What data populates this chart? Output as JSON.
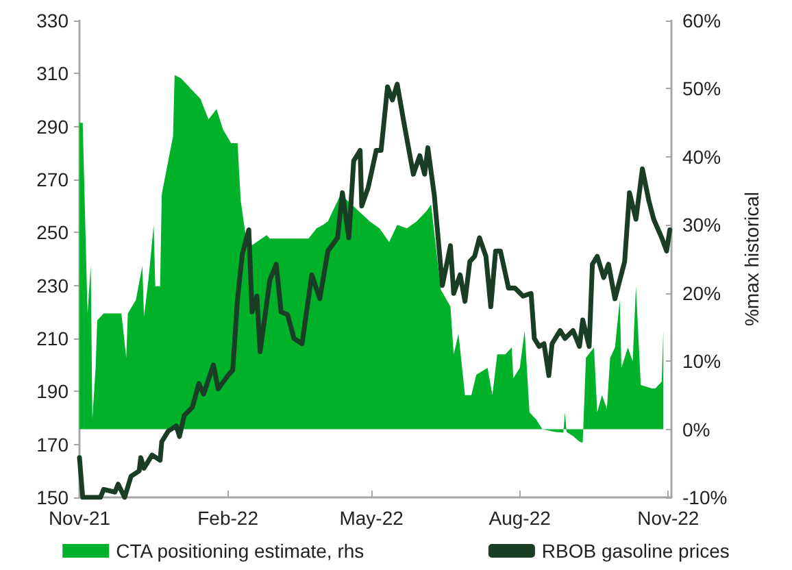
{
  "chart_data": {
    "type": "line",
    "y2label": "%max historical",
    "xlim": [
      "2021-11-01",
      "2022-11-03"
    ],
    "xticks": [
      {
        "value": "2021-11-01",
        "label": "Nov-21"
      },
      {
        "value": "2022-02-01",
        "label": "Feb-22"
      },
      {
        "value": "2022-05-01",
        "label": "May-22"
      },
      {
        "value": "2022-08-01",
        "label": "Aug-22"
      },
      {
        "value": "2022-11-01",
        "label": "Nov-22"
      }
    ],
    "ylim": [
      150,
      330
    ],
    "yticks": [
      150,
      170,
      190,
      210,
      230,
      250,
      270,
      290,
      310,
      330
    ],
    "y2lim": [
      -10,
      60
    ],
    "y2ticks": [
      {
        "value": -10,
        "label": "-10%"
      },
      {
        "value": 0,
        "label": "0%"
      },
      {
        "value": 10,
        "label": "10%"
      },
      {
        "value": 20,
        "label": "20%"
      },
      {
        "value": 30,
        "label": "30%"
      },
      {
        "value": 40,
        "label": "40%"
      },
      {
        "value": 50,
        "label": "50%"
      },
      {
        "value": 60,
        "label": "60%"
      }
    ],
    "grid": false,
    "legend": "bottom",
    "marker": "none",
    "series": [
      {
        "name": "CTA positioning estimate, rhs",
        "type": "area",
        "axis": "y2",
        "color": "#00b22a",
        "x": [
          "2021-11-01",
          "2021-11-03",
          "2021-11-06",
          "2021-11-08",
          "2021-11-09",
          "2021-11-11",
          "2021-11-12",
          "2021-11-16",
          "2021-11-27",
          "2021-11-30",
          "2021-12-01",
          "2021-12-06",
          "2021-12-10",
          "2021-12-11",
          "2021-12-14",
          "2021-12-17",
          "2021-12-18",
          "2021-12-21",
          "2021-12-22",
          "2021-12-29",
          "2021-12-30",
          "2022-01-03",
          "2022-01-09",
          "2022-01-15",
          "2022-01-20",
          "2022-01-25",
          "2022-01-29",
          "2022-02-03",
          "2022-02-07",
          "2022-02-09",
          "2022-02-12",
          "2022-02-16",
          "2022-02-25",
          "2022-02-27",
          "2022-03-10",
          "2022-03-23",
          "2022-03-28",
          "2022-04-01",
          "2022-04-04",
          "2022-04-12",
          "2022-04-21",
          "2022-04-30",
          "2022-05-06",
          "2022-05-12",
          "2022-05-17",
          "2022-05-23",
          "2022-05-29",
          "2022-06-04",
          "2022-06-07",
          "2022-06-13",
          "2022-06-19",
          "2022-06-21",
          "2022-06-24",
          "2022-06-28",
          "2022-07-02",
          "2022-07-05",
          "2022-07-12",
          "2022-07-15",
          "2022-07-18",
          "2022-07-23",
          "2022-07-27",
          "2022-07-28",
          "2022-08-01",
          "2022-08-04",
          "2022-08-07",
          "2022-08-11",
          "2022-08-15",
          "2022-08-19",
          "2022-08-23",
          "2022-08-28",
          "2022-08-29",
          "2022-08-30",
          "2022-09-03",
          "2022-09-07",
          "2022-09-09",
          "2022-09-11",
          "2022-09-16",
          "2022-09-18",
          "2022-09-21",
          "2022-09-24",
          "2022-09-26",
          "2022-09-29",
          "2022-10-02",
          "2022-10-03",
          "2022-10-07",
          "2022-10-10",
          "2022-10-12",
          "2022-10-15",
          "2022-10-22",
          "2022-10-24",
          "2022-10-28",
          "2022-10-29"
        ],
        "values": [
          45,
          45,
          17,
          24,
          1.5,
          9,
          16,
          17,
          17,
          10.5,
          17,
          19,
          24,
          16.5,
          22.5,
          30,
          21,
          21,
          34.5,
          43,
          52,
          51.5,
          50,
          48.5,
          45.5,
          47,
          44,
          42,
          42,
          33.5,
          28.5,
          27,
          28.5,
          28,
          28,
          28,
          29.5,
          30,
          30.5,
          34.5,
          32.5,
          30.5,
          29.5,
          27.5,
          30,
          29.5,
          30.5,
          32,
          33,
          20.5,
          18,
          11,
          14,
          5,
          5,
          8,
          9,
          5,
          11,
          11,
          12,
          7.5,
          9,
          14.5,
          2.5,
          1.5,
          0,
          -0.2,
          -0.4,
          -0.5,
          2.5,
          -0.4,
          -1,
          -1.8,
          -2,
          10.5,
          12,
          2.5,
          5,
          3,
          10.5,
          12,
          19,
          9,
          12,
          10,
          21,
          6.5,
          6,
          6,
          7,
          14.5
        ]
      },
      {
        "name": "RBOB gasoline prices",
        "color": "#1a3d26",
        "x": [
          "2021-11-01",
          "2021-11-03",
          "2021-11-14",
          "2021-11-16",
          "2021-11-23",
          "2021-11-25",
          "2021-11-29",
          "2021-12-03",
          "2021-12-08",
          "2021-12-09",
          "2021-12-11",
          "2021-12-16",
          "2021-12-21",
          "2021-12-22",
          "2021-12-26",
          "2021-12-31",
          "2022-01-02",
          "2022-01-05",
          "2022-01-10",
          "2022-01-14",
          "2022-01-17",
          "2022-01-23",
          "2022-01-26",
          "2022-02-01",
          "2022-02-04",
          "2022-02-07",
          "2022-02-10",
          "2022-02-14",
          "2022-02-16",
          "2022-02-19",
          "2022-02-21",
          "2022-02-27",
          "2022-03-03",
          "2022-03-06",
          "2022-03-10",
          "2022-03-14",
          "2022-03-19",
          "2022-03-25",
          "2022-03-30",
          "2022-04-04",
          "2022-04-10",
          "2022-04-13",
          "2022-04-17",
          "2022-04-20",
          "2022-04-24",
          "2022-04-25",
          "2022-04-29",
          "2022-05-04",
          "2022-05-07",
          "2022-05-11",
          "2022-05-14",
          "2022-05-17",
          "2022-05-21",
          "2022-05-24",
          "2022-05-27",
          "2022-05-31",
          "2022-06-03",
          "2022-06-05",
          "2022-06-09",
          "2022-06-14",
          "2022-06-19",
          "2022-06-21",
          "2022-06-25",
          "2022-06-28",
          "2022-07-01",
          "2022-07-04",
          "2022-07-07",
          "2022-07-11",
          "2022-07-14",
          "2022-07-17",
          "2022-07-20",
          "2022-07-25",
          "2022-07-29",
          "2022-08-03",
          "2022-08-08",
          "2022-08-10",
          "2022-08-13",
          "2022-08-16",
          "2022-08-19",
          "2022-08-21",
          "2022-08-26",
          "2022-08-29",
          "2022-09-03",
          "2022-09-07",
          "2022-09-09",
          "2022-09-13",
          "2022-09-15",
          "2022-09-18",
          "2022-09-22",
          "2022-09-25",
          "2022-09-29",
          "2022-10-05",
          "2022-10-08",
          "2022-10-12",
          "2022-10-16",
          "2022-10-20",
          "2022-10-23",
          "2022-10-28",
          "2022-10-31",
          "2022-11-02"
        ],
        "values": [
          165,
          150,
          150,
          153,
          152,
          155,
          150,
          158,
          160,
          165,
          161,
          166,
          164,
          171,
          175,
          177,
          173,
          181,
          184,
          193,
          189,
          200,
          191,
          196,
          198,
          225,
          242,
          251,
          220,
          226,
          205,
          232,
          238,
          220,
          219,
          210,
          208,
          234,
          225,
          243,
          248,
          265,
          248,
          277,
          281,
          260,
          267,
          281,
          281,
          305,
          300,
          306,
          292,
          282,
          272,
          279,
          272,
          282,
          264,
          230,
          245,
          227,
          234,
          224,
          239,
          241,
          248,
          241,
          222,
          243,
          243,
          229,
          229,
          226,
          227,
          210,
          207,
          208,
          196,
          208,
          213,
          210,
          213,
          207,
          217,
          207,
          238,
          241,
          233,
          238,
          225,
          239,
          265,
          255,
          274,
          262,
          255,
          248,
          243,
          251
        ]
      }
    ]
  }
}
